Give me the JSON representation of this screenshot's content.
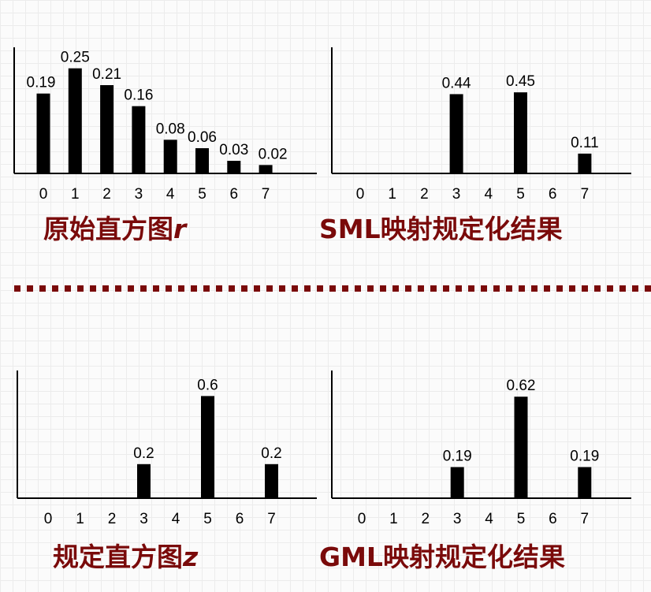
{
  "colors": {
    "bars": "#000000",
    "axes": "#000000",
    "caption": "#7a0a0a",
    "divider": "#7a0a0a"
  },
  "chart_data": [
    {
      "type": "bar",
      "categories": [
        "0",
        "1",
        "2",
        "3",
        "4",
        "5",
        "6",
        "7"
      ],
      "values": [
        0.19,
        0.25,
        0.21,
        0.16,
        0.08,
        0.06,
        0.03,
        0.02
      ],
      "data_labels": [
        "0.19",
        "0.25",
        "0.21",
        "0.16",
        "0.08",
        "0.06",
        "0.03",
        "0.02"
      ],
      "title": "原始直方图",
      "title_var": "r",
      "ylim": [
        0,
        0.3
      ],
      "grid": false,
      "legend": "none"
    },
    {
      "type": "bar",
      "categories": [
        "0",
        "1",
        "2",
        "3",
        "4",
        "5",
        "6",
        "7"
      ],
      "values": [
        0,
        0,
        0,
        0.44,
        0,
        0.45,
        0,
        0.11
      ],
      "data_labels": [
        "",
        "",
        "",
        "0.44",
        "",
        "0.45",
        "",
        "0.11"
      ],
      "title": "SML映射规定化结果",
      "title_var": "",
      "ylim": [
        0,
        0.7
      ],
      "grid": false,
      "legend": "none"
    },
    {
      "type": "bar",
      "categories": [
        "0",
        "1",
        "2",
        "3",
        "4",
        "5",
        "6",
        "7"
      ],
      "values": [
        0,
        0,
        0,
        0.2,
        0,
        0.6,
        0,
        0.2
      ],
      "data_labels": [
        "",
        "",
        "",
        "0.2",
        "",
        "0.6",
        "",
        "0.2"
      ],
      "title": "规定直方图",
      "title_var": "z",
      "ylim": [
        0,
        0.75
      ],
      "grid": false,
      "legend": "none"
    },
    {
      "type": "bar",
      "categories": [
        "0",
        "1",
        "2",
        "3",
        "4",
        "5",
        "6",
        "7"
      ],
      "values": [
        0,
        0,
        0,
        0.19,
        0,
        0.62,
        0,
        0.19
      ],
      "data_labels": [
        "",
        "",
        "",
        "0.19",
        "",
        "0.62",
        "",
        "0.19"
      ],
      "title": "GML映射规定化结果",
      "title_var": "",
      "ylim": [
        0,
        0.78
      ],
      "grid": false,
      "legend": "none"
    }
  ]
}
